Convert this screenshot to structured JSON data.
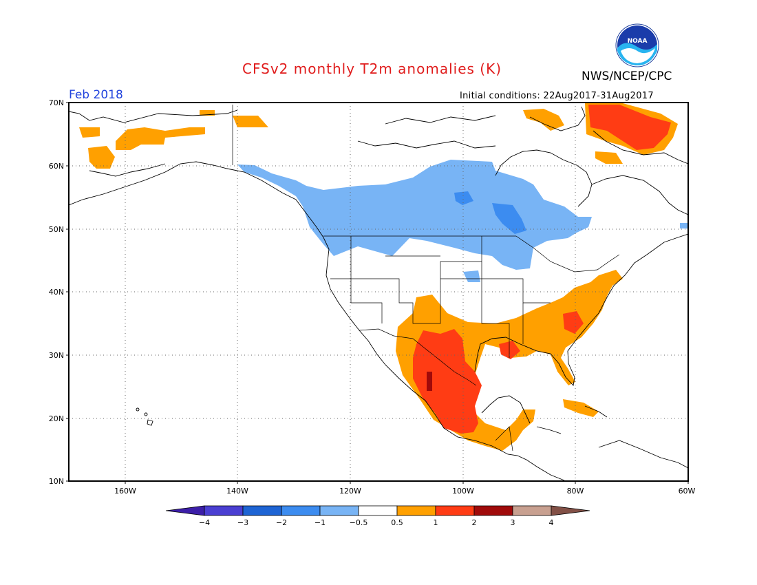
{
  "header": {
    "title": "CFSv2 monthly T2m anomalies (K)",
    "agency": "NWS/NCEP/CPC",
    "logo_text": "NOAA",
    "valid_month": "Feb 2018",
    "initial_conditions": "Initial conditions: 22Aug2017-31Aug2017"
  },
  "map": {
    "lat_labels": [
      "70N",
      "60N",
      "50N",
      "40N",
      "30N",
      "20N",
      "10N"
    ],
    "lon_labels": [
      "160W",
      "140W",
      "120W",
      "100W",
      "80W",
      "60W"
    ],
    "lat_range": [
      10,
      70
    ],
    "lon_range": [
      -172,
      -60
    ],
    "gridlines": true,
    "regions": [
      {
        "name": "canada-cold",
        "level": "-1 to -0.5"
      },
      {
        "name": "canada-cold-core",
        "level": "-2 to -1"
      },
      {
        "name": "mexico-warm",
        "level": "1 to 2"
      },
      {
        "name": "southeast-us-warm",
        "level": "0.5 to 1"
      },
      {
        "name": "labrador-warm",
        "level": "1 to 2"
      },
      {
        "name": "alaska-warm",
        "level": "0.5 to 1"
      }
    ]
  },
  "colorbar": {
    "labels": [
      "−4",
      "−3",
      "−2",
      "−1",
      "−0.5",
      "0.5",
      "1",
      "2",
      "3",
      "4"
    ],
    "colors": [
      "#3c1ea8",
      "#4a3fd2",
      "#1e64d4",
      "#3c8cf0",
      "#78b4f5",
      "#ffffff",
      "#ffa000",
      "#ff3c14",
      "#a00a0a",
      "#c8a090",
      "#825046"
    ]
  }
}
